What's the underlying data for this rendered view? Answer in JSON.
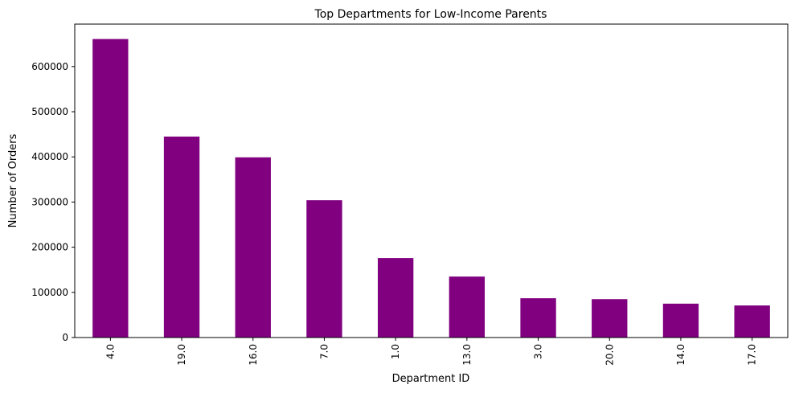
{
  "chart_data": {
    "type": "bar",
    "title": "Top Departments for Low-Income Parents",
    "xlabel": "Department ID",
    "ylabel": "Number of Orders",
    "categories": [
      "4.0",
      "19.0",
      "16.0",
      "7.0",
      "1.0",
      "13.0",
      "3.0",
      "20.0",
      "14.0",
      "17.0"
    ],
    "values": [
      661000,
      445000,
      399000,
      304000,
      176000,
      135000,
      87000,
      85000,
      75000,
      71000
    ],
    "ylim": [
      0,
      694000
    ],
    "yticks": [
      0,
      100000,
      200000,
      300000,
      400000,
      500000,
      600000
    ],
    "ytick_labels": [
      "0",
      "100000",
      "200000",
      "300000",
      "400000",
      "500000",
      "600000"
    ],
    "bar_color": "#800080",
    "grid": false,
    "legend": "none"
  }
}
